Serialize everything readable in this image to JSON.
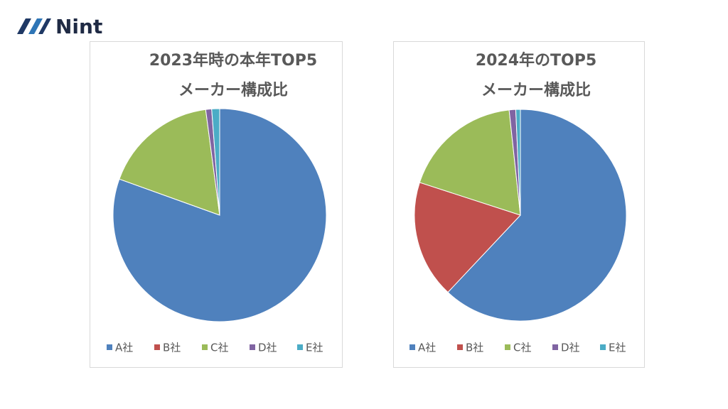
{
  "logo": "Nint",
  "chart_data": [
    {
      "type": "pie",
      "title": "2023年時の本年TOP5",
      "subtitle": "メーカー構成比",
      "categories": [
        "A社",
        "B社",
        "C社",
        "D社",
        "E社"
      ],
      "values": [
        80.5,
        0,
        17.4,
        0.9,
        1.2
      ],
      "colors": [
        "#4f81bd",
        "#c0504d",
        "#9bbb59",
        "#8064a2",
        "#4bacc6"
      ],
      "legend": "bottom"
    },
    {
      "type": "pie",
      "title": "2024年のTOP5",
      "subtitle": "メーカー構成比",
      "categories": [
        "A社",
        "B社",
        "C社",
        "D社",
        "E社"
      ],
      "values": [
        62,
        18,
        18.3,
        1,
        0.7
      ],
      "colors": [
        "#4f81bd",
        "#c0504d",
        "#9bbb59",
        "#8064a2",
        "#4bacc6"
      ],
      "legend": "bottom"
    }
  ]
}
